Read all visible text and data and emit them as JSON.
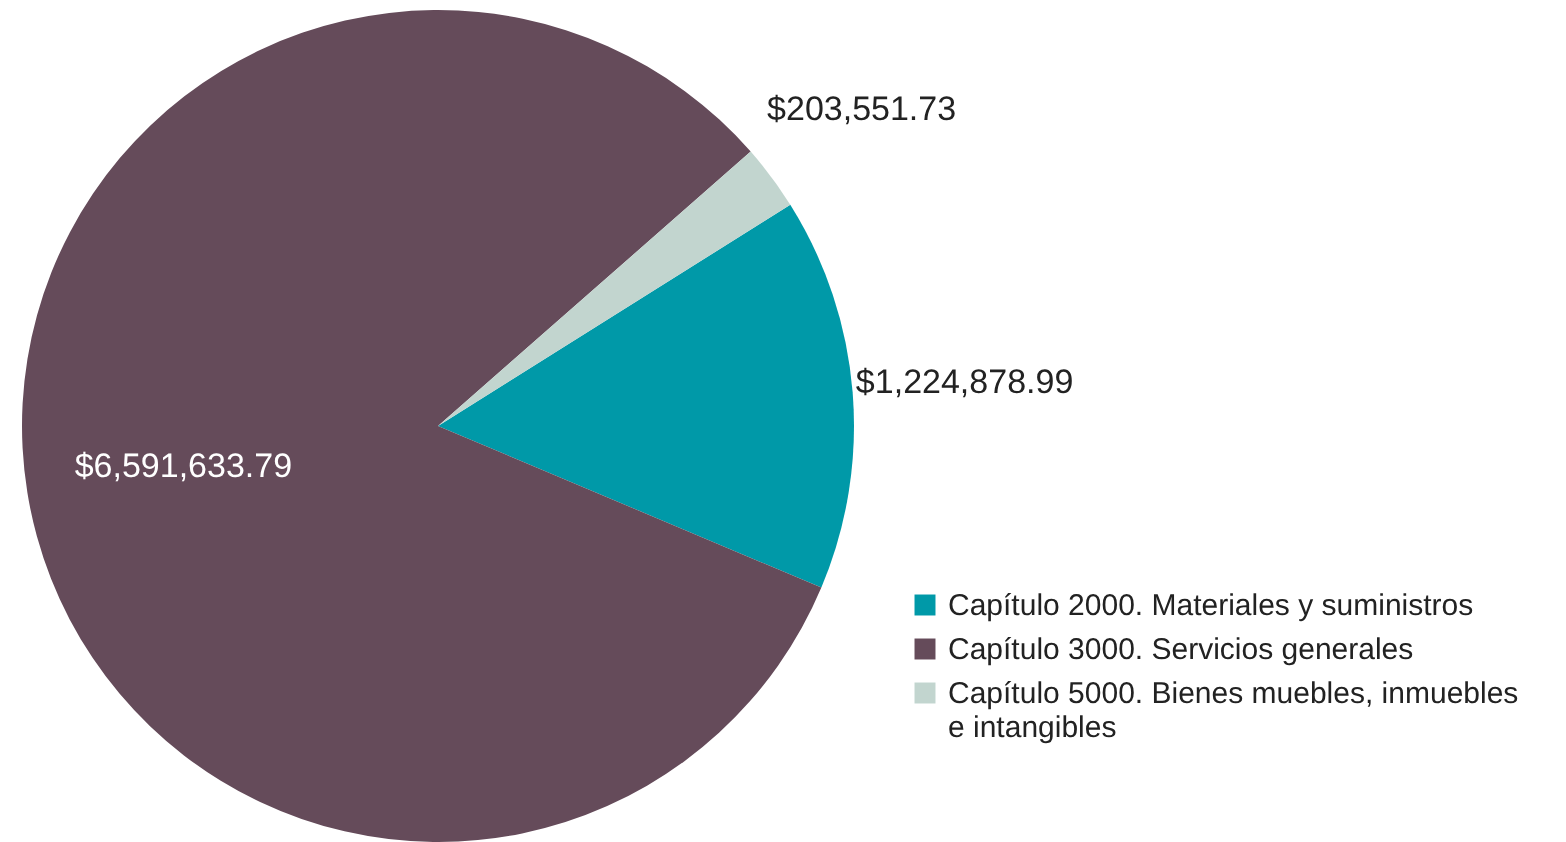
{
  "chart_data": {
    "type": "pie",
    "categories": [
      "Capítulo 2000. Materiales y suministros",
      "Capítulo 3000. Servicios generales",
      "Capítulo 5000. Bienes muebles, inmuebles e intangibles"
    ],
    "values": [
      1224878.99,
      6591633.79,
      203551.73
    ],
    "colors": [
      "#0099a8",
      "#654b5a",
      "#c2d5cf"
    ],
    "value_labels": [
      "$1,224,878.99",
      "$6,591,633.79",
      "$203,551.73"
    ],
    "legend": "bottom right"
  }
}
